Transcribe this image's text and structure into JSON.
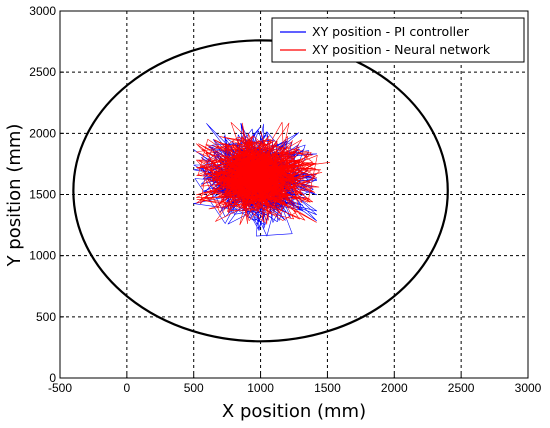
{
  "chart_data": {
    "type": "line",
    "xlabel": "X position (mm)",
    "ylabel": "Y position (mm)",
    "xlim": [
      -500,
      3000
    ],
    "ylim": [
      0,
      3000
    ],
    "xticks": [
      -500,
      0,
      500,
      1000,
      1500,
      2000,
      2500,
      3000
    ],
    "yticks": [
      0,
      500,
      1000,
      1500,
      2000,
      2500,
      3000
    ],
    "grid": true,
    "grid_style": "dashed",
    "legend_position": "top-right",
    "boundary": {
      "type": "ellipse",
      "center": [
        1000,
        1530
      ],
      "rx": 1400,
      "ry": 1230,
      "color": "#000000"
    },
    "series": [
      {
        "name": "XY position - PI controller",
        "color": "#0000ff",
        "center": [
          960,
          1640
        ],
        "spread": [
          190,
          170
        ],
        "extent": {
          "x": [
            500,
            1420
          ],
          "y": [
            1160,
            2080
          ]
        },
        "n_points": 700
      },
      {
        "name": "XY position - Neural network",
        "color": "#ff0000",
        "center": [
          970,
          1650
        ],
        "spread": [
          190,
          150
        ],
        "extent": {
          "x": [
            520,
            1680
          ],
          "y": [
            1210,
            2140
          ]
        },
        "n_points": 900
      }
    ]
  }
}
